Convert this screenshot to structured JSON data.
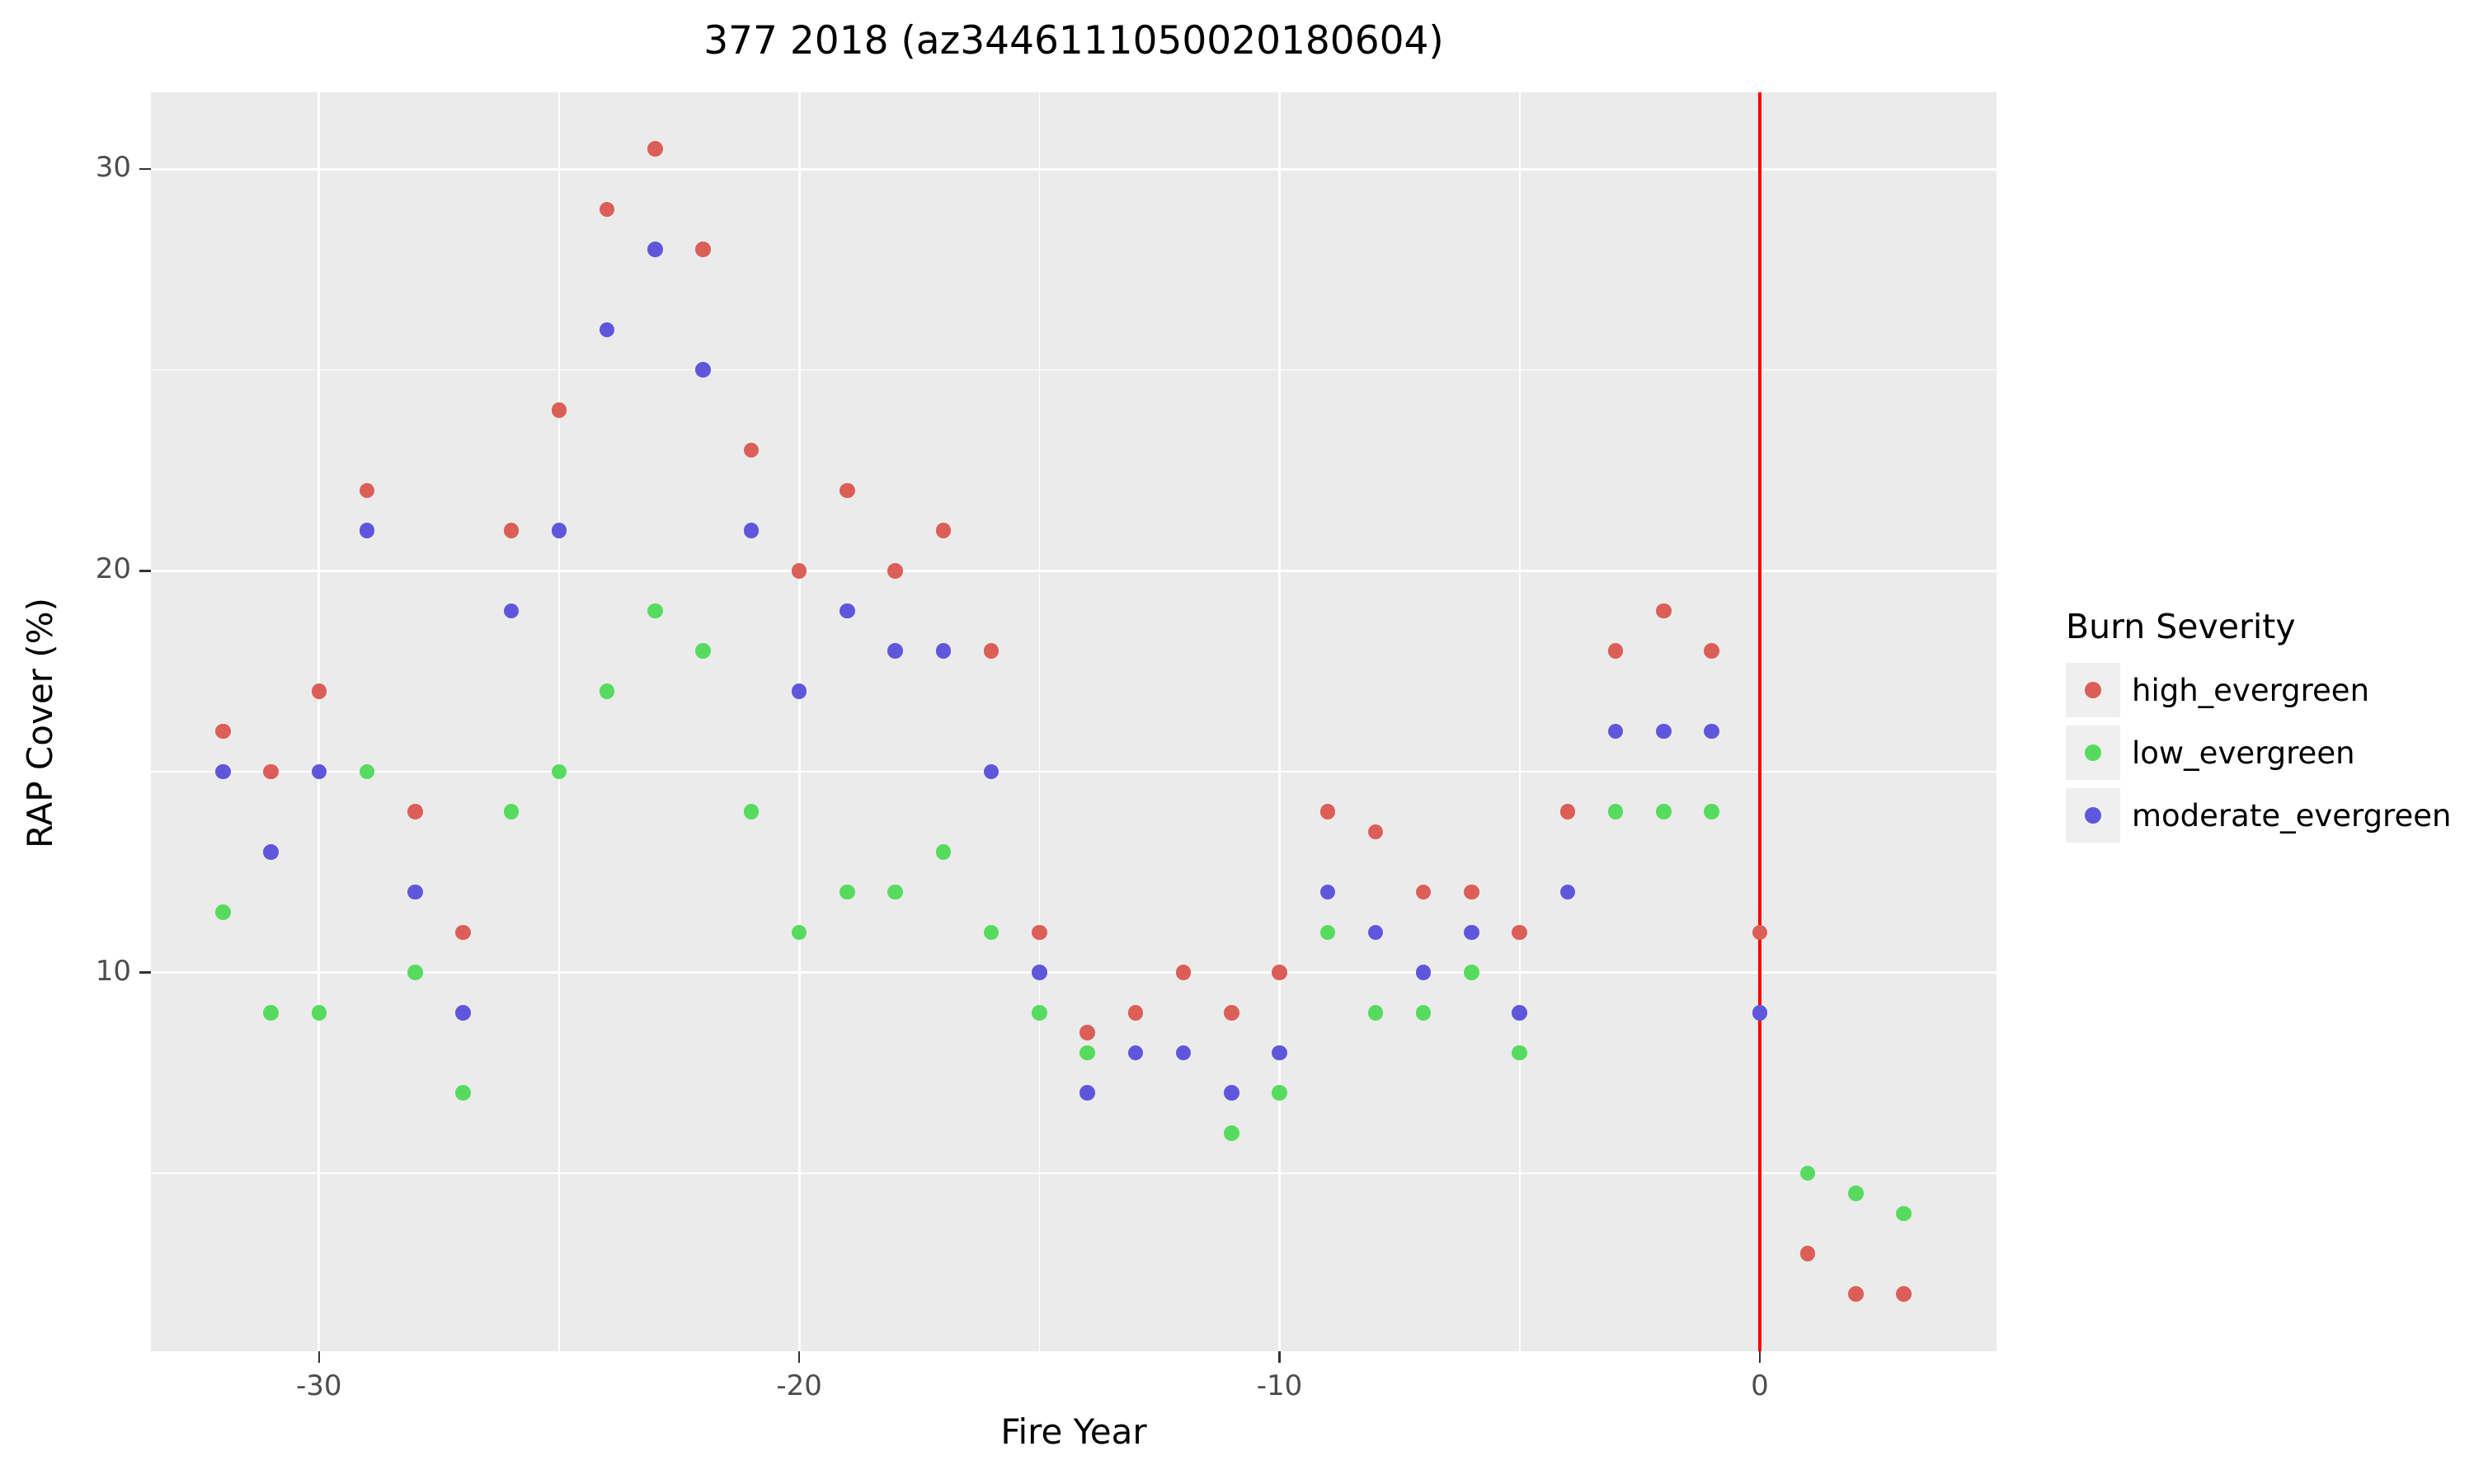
{
  "figure": {
    "title": "377 2018 (az3446111050020180604)",
    "background_color": "#ffffff"
  },
  "chart_data": {
    "type": "scatter",
    "title": "377 2018 (az3446111050020180604)",
    "xlabel": "Fire Year",
    "ylabel": "RAP Cover (%)",
    "xlim": [
      -33.5,
      4.93
    ],
    "ylim": [
      0.57,
      31.91
    ],
    "x_ticks": [
      -30,
      -20,
      -10,
      0
    ],
    "x_minor_ticks": [
      -25,
      -15,
      -5
    ],
    "y_ticks": [
      10,
      20,
      30
    ],
    "y_minor_ticks": [
      5,
      15,
      25
    ],
    "grid": true,
    "legend_position": "right",
    "panel_background": "#ebebeb",
    "gridline_color": "#ffffff",
    "tick_label_color": "#4d4d4d",
    "vline": {
      "x": 0,
      "color": "#ff0000"
    },
    "legend": {
      "title": "Burn Severity",
      "entries": [
        "high_evergreen",
        "low_evergreen",
        "moderate_evergreen"
      ]
    },
    "series": [
      {
        "name": "high_evergreen",
        "color": "#db5f57",
        "points": [
          [
            -32,
            16
          ],
          [
            -31,
            15
          ],
          [
            -30,
            17
          ],
          [
            -29,
            22
          ],
          [
            -28,
            14
          ],
          [
            -27,
            11
          ],
          [
            -26,
            21
          ],
          [
            -25,
            24
          ],
          [
            -24,
            29
          ],
          [
            -23,
            30.5
          ],
          [
            -22,
            28
          ],
          [
            -21,
            23
          ],
          [
            -20,
            20
          ],
          [
            -19,
            22
          ],
          [
            -18,
            20
          ],
          [
            -17,
            21
          ],
          [
            -16,
            18
          ],
          [
            -15,
            11
          ],
          [
            -14,
            8.5
          ],
          [
            -13,
            9
          ],
          [
            -12,
            10
          ],
          [
            -11,
            9
          ],
          [
            -10,
            10
          ],
          [
            -9,
            14
          ],
          [
            -8,
            13.5
          ],
          [
            -7,
            12
          ],
          [
            -6,
            12
          ],
          [
            -5,
            11
          ],
          [
            -4,
            14
          ],
          [
            -3,
            18
          ],
          [
            -2,
            19
          ],
          [
            -1,
            18
          ],
          [
            0,
            11
          ],
          [
            1,
            3
          ],
          [
            2,
            2
          ],
          [
            3,
            2
          ]
        ]
      },
      {
        "name": "low_evergreen",
        "color": "#57db5f",
        "points": [
          [
            -32,
            11.5
          ],
          [
            -31,
            9
          ],
          [
            -30,
            9
          ],
          [
            -29,
            15
          ],
          [
            -28,
            10
          ],
          [
            -27,
            7
          ],
          [
            -26,
            14
          ],
          [
            -25,
            15
          ],
          [
            -24,
            17
          ],
          [
            -23,
            19
          ],
          [
            -22,
            18
          ],
          [
            -21,
            14
          ],
          [
            -20,
            11
          ],
          [
            -19,
            12
          ],
          [
            -18,
            12
          ],
          [
            -17,
            13
          ],
          [
            -16,
            11
          ],
          [
            -15,
            9
          ],
          [
            -14,
            8
          ],
          [
            -11,
            6
          ],
          [
            -10,
            7
          ],
          [
            -9,
            11
          ],
          [
            -8,
            9
          ],
          [
            -7,
            9
          ],
          [
            -6,
            10
          ],
          [
            -5,
            8
          ],
          [
            -3,
            14
          ],
          [
            -2,
            14
          ],
          [
            -1,
            14
          ],
          [
            1,
            5
          ],
          [
            2,
            4.5
          ],
          [
            3,
            4
          ]
        ]
      },
      {
        "name": "moderate_evergreen",
        "color": "#5f57db",
        "points": [
          [
            -32,
            15
          ],
          [
            -31,
            13
          ],
          [
            -30,
            15
          ],
          [
            -29,
            21
          ],
          [
            -28,
            12
          ],
          [
            -27,
            9
          ],
          [
            -26,
            19
          ],
          [
            -25,
            21
          ],
          [
            -24,
            26
          ],
          [
            -23,
            28
          ],
          [
            -22,
            25
          ],
          [
            -21,
            21
          ],
          [
            -20,
            17
          ],
          [
            -19,
            19
          ],
          [
            -18,
            18
          ],
          [
            -17,
            18
          ],
          [
            -16,
            15
          ],
          [
            -15,
            10
          ],
          [
            -14,
            7
          ],
          [
            -13,
            8
          ],
          [
            -12,
            8
          ],
          [
            -11,
            7
          ],
          [
            -10,
            8
          ],
          [
            -9,
            12
          ],
          [
            -8,
            11
          ],
          [
            -7,
            10
          ],
          [
            -6,
            11
          ],
          [
            -5,
            9
          ],
          [
            -4,
            12
          ],
          [
            -3,
            16
          ],
          [
            -2,
            16
          ],
          [
            -1,
            16
          ],
          [
            0,
            9
          ]
        ]
      }
    ]
  }
}
